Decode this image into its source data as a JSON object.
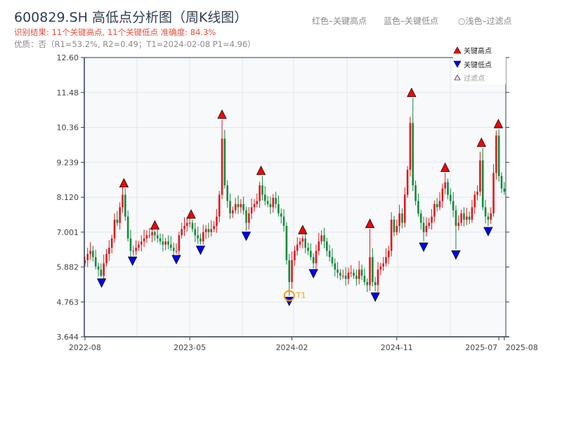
{
  "header": {
    "title": "600829.SH 高低点分析图（周K线图）",
    "result": "识别结果: 11个关键高点, 11个关键低点  准确度: 84.3%",
    "quality": "优质：否（R1=53.2%, R2=0.49；T1=2024-02-08 P1=4.96）",
    "hint_red": "红色–关键高点",
    "hint_blue": "蓝色–关键低点",
    "hint_light": "○浅色–过滤点"
  },
  "chart_data": {
    "type": "candlestick",
    "title": "600829.SH 高低点分析图（周K线图）",
    "ylim": [
      3.644,
      12.6
    ],
    "yticks": [
      "3.644",
      "4.763",
      "5.882",
      "7.001",
      "8.120",
      "9.239",
      "10.36",
      "11.48",
      "12.60"
    ],
    "xticks": [
      {
        "week": 0,
        "label": "2022-08"
      },
      {
        "week": 39,
        "label": "2023-05"
      },
      {
        "week": 77,
        "label": "2024-02"
      },
      {
        "week": 116,
        "label": "2024-11"
      },
      {
        "week": 154,
        "label": "2025-07"
      },
      {
        "week": 156,
        "label": "2025-08"
      }
    ],
    "close": [
      6.1,
      6.3,
      6.4,
      6.2,
      5.9,
      5.8,
      5.6,
      6.0,
      6.3,
      6.5,
      6.8,
      7.4,
      7.3,
      7.8,
      8.2,
      7.5,
      6.8,
      6.4,
      6.4,
      6.5,
      6.6,
      6.7,
      6.8,
      6.9,
      6.9,
      7.0,
      6.9,
      6.8,
      6.7,
      6.6,
      6.7,
      6.6,
      6.5,
      6.4,
      6.4,
      6.9,
      7.1,
      7.2,
      7.3,
      7.3,
      7.1,
      6.9,
      6.8,
      6.7,
      7.0,
      7.1,
      7.0,
      7.1,
      7.2,
      7.5,
      8.2,
      10.0,
      8.5,
      8.0,
      7.6,
      7.7,
      7.9,
      7.8,
      7.9,
      7.7,
      7.3,
      7.6,
      7.8,
      7.9,
      8.0,
      8.5,
      8.2,
      8.0,
      7.9,
      7.8,
      8.1,
      7.9,
      7.6,
      7.5,
      7.2,
      6.1,
      5.4,
      6.1,
      6.4,
      6.6,
      6.7,
      6.8,
      6.5,
      6.4,
      6.2,
      6.0,
      6.4,
      6.7,
      6.9,
      6.7,
      6.4,
      6.2,
      6.0,
      5.8,
      5.7,
      5.6,
      5.6,
      5.5,
      5.7,
      5.7,
      5.6,
      5.5,
      5.8,
      5.6,
      5.4,
      5.3,
      6.2,
      5.4,
      5.3,
      5.8,
      5.9,
      6.0,
      6.2,
      6.4,
      7.4,
      7.0,
      7.2,
      7.6,
      7.3,
      8.2,
      9.0,
      10.5,
      8.5,
      8.0,
      7.6,
      7.3,
      7.0,
      7.2,
      7.3,
      7.5,
      7.9,
      7.8,
      8.0,
      8.4,
      8.6,
      8.2,
      8.0,
      7.7,
      7.2,
      7.3,
      7.6,
      7.4,
      7.5,
      7.4,
      7.8,
      8.2,
      8.3,
      9.3,
      7.8,
      7.5,
      7.4,
      7.6,
      8.9,
      10.1,
      8.8,
      8.4,
      8.3
    ],
    "key_highs": [
      {
        "week": 14.5,
        "price": 8.4
      },
      {
        "week": 26,
        "price": 7.05
      },
      {
        "week": 39.5,
        "price": 7.4
      },
      {
        "week": 51,
        "price": 10.6
      },
      {
        "week": 65.5,
        "price": 8.8
      },
      {
        "week": 81,
        "price": 6.9
      },
      {
        "week": 106,
        "price": 7.1
      },
      {
        "week": 121.5,
        "price": 11.3
      },
      {
        "week": 134,
        "price": 8.9
      },
      {
        "week": 147.5,
        "price": 9.7
      },
      {
        "week": 153.8,
        "price": 10.3
      }
    ],
    "key_lows": [
      {
        "week": 6.2,
        "price": 5.55
      },
      {
        "week": 17.7,
        "price": 6.25
      },
      {
        "week": 34,
        "price": 6.3
      },
      {
        "week": 43,
        "price": 6.6
      },
      {
        "week": 60,
        "price": 7.05
      },
      {
        "week": 76,
        "price": 4.96
      },
      {
        "week": 85,
        "price": 5.85
      },
      {
        "week": 108,
        "price": 5.1
      },
      {
        "week": 126,
        "price": 6.7
      },
      {
        "week": 138,
        "price": 6.45
      },
      {
        "week": 150,
        "price": 7.2
      }
    ],
    "t1": {
      "week": 76,
      "price": 4.96,
      "label": "T1"
    },
    "legend": {
      "position": "top-right",
      "items": [
        "关键高点",
        "关键低点",
        "过滤点"
      ]
    },
    "colors": {
      "up": "#e0191e",
      "down": "#138a3a",
      "high": "#ff0000",
      "low": "#0000ff",
      "t1": "#f39c12"
    }
  }
}
